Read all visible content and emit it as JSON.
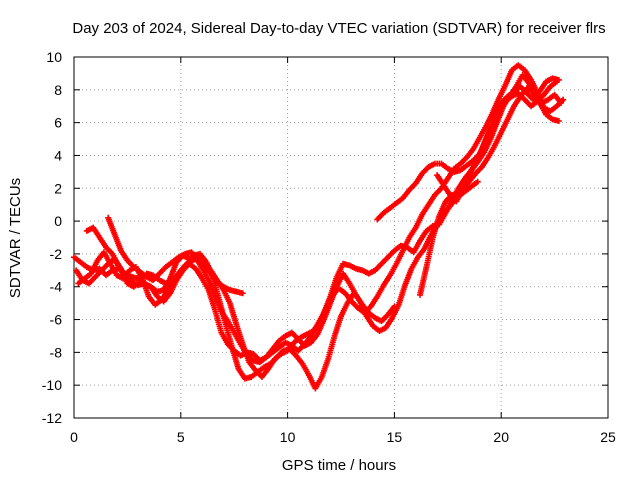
{
  "chart_data": {
    "type": "scatter",
    "title": "Day 203 of 2024, Sidereal Day-to-day VTEC variation (SDTVAR) for receiver flrs",
    "xlabel": "GPS time / hours",
    "ylabel": "SDTVAR / TECUs",
    "xlim": [
      0,
      25
    ],
    "ylim": [
      -12,
      10
    ],
    "xticks": [
      "0",
      "5",
      "10",
      "15",
      "20",
      "25"
    ],
    "yticks": [
      "10",
      "8",
      "6",
      "4",
      "2",
      "0",
      "-2",
      "-4",
      "-6",
      "-8",
      "-10",
      "-12"
    ],
    "grid": true,
    "marker": "plus",
    "color": "#ff0000",
    "series": [
      {
        "x": [
          0.0,
          0.3,
          0.6,
          0.9,
          1.2,
          1.5,
          1.8,
          2.1,
          2.4,
          2.7,
          3.0,
          3.3,
          3.6,
          3.9,
          4.2,
          4.5,
          4.8,
          5.1,
          5.4,
          5.7,
          6.0,
          6.3,
          6.6,
          6.9,
          7.2,
          7.5,
          7.8,
          8.1,
          8.4,
          8.7,
          9.0,
          9.3,
          9.6,
          9.9,
          10.2,
          10.5,
          10.8,
          11.1,
          11.4,
          11.7,
          12.0,
          12.3,
          12.6,
          12.9,
          13.2,
          13.5,
          13.8,
          14.1,
          14.4,
          14.7,
          15.0,
          15.3,
          15.6,
          15.9,
          16.2,
          16.5,
          16.8,
          17.1,
          17.4,
          17.7,
          18.0,
          18.3,
          18.6,
          18.9,
          19.2,
          19.5,
          19.8,
          20.1,
          20.4,
          20.7,
          21.0,
          21.3,
          21.6,
          21.9,
          22.2,
          22.5,
          22.8
        ],
        "y": [
          -2.2,
          -2.5,
          -2.8,
          -3.0,
          -2.9,
          -3.3,
          -3.0,
          -2.9,
          -3.2,
          -3.4,
          -3.5,
          -3.9,
          -4.0,
          -4.3,
          -4.2,
          -3.5,
          -2.5,
          -2.1,
          -2.3,
          -2.2,
          -2.9,
          -3.6,
          -4.5,
          -5.5,
          -6.1,
          -6.8,
          -7.5,
          -8.2,
          -8.5,
          -8.6,
          -8.3,
          -8.0,
          -7.7,
          -7.4,
          -7.6,
          -7.9,
          -7.5,
          -7.0,
          -6.3,
          -5.6,
          -4.6,
          -3.4,
          -2.6,
          -2.7,
          -2.9,
          -3.0,
          -3.2,
          -3.0,
          -2.6,
          -2.2,
          -1.8,
          -1.5,
          -1.6,
          -1.9,
          -1.2,
          -0.6,
          -0.3,
          -0.2,
          0.5,
          1.3,
          2.0,
          2.6,
          3.1,
          3.6,
          4.2,
          5.0,
          6.0,
          7.0,
          7.6,
          8.2,
          8.9,
          8.4,
          7.5,
          7.2,
          7.4,
          7.7,
          7.2
        ]
      },
      {
        "x": [
          0.1,
          0.4,
          0.7,
          1.0,
          1.3,
          1.6,
          1.9,
          2.2,
          2.5,
          2.8,
          3.1,
          3.4,
          3.7,
          4.0,
          4.3,
          4.6,
          4.9,
          5.2,
          5.5,
          5.8,
          6.1,
          6.4,
          6.7,
          7.0,
          7.3,
          7.6,
          7.9,
          8.2,
          8.5,
          8.8,
          9.1,
          9.4,
          9.7,
          10.0,
          10.3,
          10.6,
          10.9,
          11.2,
          11.5,
          11.8,
          12.1,
          12.4,
          12.7,
          13.0,
          13.3,
          13.6,
          13.9,
          14.2,
          14.5,
          14.8,
          15.1,
          15.4,
          15.7,
          16.0,
          16.3,
          16.6,
          16.9,
          17.2,
          17.5,
          17.8,
          18.1,
          18.4,
          18.7,
          19.0,
          19.3,
          19.6,
          19.9,
          20.2,
          20.5,
          20.8,
          21.1,
          21.4,
          21.7,
          22.0,
          22.3,
          22.6,
          22.9
        ],
        "y": [
          -3.0,
          -3.6,
          -3.8,
          -3.4,
          -3.0,
          -2.6,
          -2.3,
          -2.9,
          -3.8,
          -4.0,
          -3.7,
          -3.2,
          -3.3,
          -3.6,
          -3.8,
          -3.9,
          -3.3,
          -2.7,
          -2.4,
          -2.3,
          -2.5,
          -3.0,
          -3.6,
          -4.2,
          -5.0,
          -6.3,
          -7.5,
          -8.6,
          -9.1,
          -9.5,
          -9.0,
          -8.4,
          -8.1,
          -7.9,
          -7.4,
          -7.1,
          -6.9,
          -6.7,
          -6.2,
          -5.3,
          -4.5,
          -4.1,
          -4.4,
          -4.9,
          -5.3,
          -5.6,
          -5.2,
          -4.6,
          -3.9,
          -3.3,
          -2.6,
          -1.8,
          -1.0,
          -0.4,
          0.4,
          1.0,
          1.6,
          2.0,
          2.6,
          3.2,
          3.5,
          3.9,
          4.4,
          5.1,
          5.8,
          6.6,
          7.5,
          8.3,
          9.2,
          9.5,
          9.2,
          8.6,
          7.8,
          6.9,
          6.7,
          7.0,
          7.4
        ]
      },
      {
        "x": [
          0.2,
          0.5,
          0.8,
          1.1,
          1.4,
          1.7,
          2.0,
          2.3,
          2.6,
          2.9,
          3.2,
          3.5,
          3.8,
          4.1,
          4.4,
          4.7,
          5.0,
          5.3,
          5.6,
          5.9,
          6.2,
          6.5,
          6.8,
          7.1,
          7.4,
          7.7,
          8.0,
          8.3,
          8.6,
          8.9,
          9.2,
          9.5,
          9.8,
          10.1,
          10.4,
          10.7,
          11.0,
          11.3,
          11.6,
          11.9,
          12.2,
          12.5,
          12.8,
          13.1,
          13.4,
          13.7,
          14.0,
          14.3,
          14.6,
          14.9,
          15.2,
          15.5,
          15.8,
          16.1,
          16.4,
          16.7,
          17.0,
          17.3,
          17.6,
          17.9,
          18.2,
          18.5,
          18.8,
          19.1,
          19.4,
          19.7,
          20.0,
          20.3,
          20.6,
          20.9,
          21.2,
          21.5,
          21.8,
          22.1,
          22.4,
          22.7
        ],
        "y": [
          -3.8,
          -3.5,
          -3.2,
          -2.4,
          -1.9,
          -2.6,
          -3.3,
          -3.5,
          -3.0,
          -2.8,
          -3.5,
          -4.6,
          -5.1,
          -4.8,
          -4.2,
          -3.5,
          -3.0,
          -2.6,
          -2.1,
          -2.0,
          -2.5,
          -3.4,
          -4.8,
          -6.3,
          -7.7,
          -9.0,
          -9.6,
          -9.5,
          -9.2,
          -8.9,
          -8.7,
          -8.3,
          -7.9,
          -7.8,
          -8.2,
          -8.7,
          -9.4,
          -10.2,
          -9.5,
          -8.4,
          -7.0,
          -5.8,
          -5.0,
          -4.4,
          -4.9,
          -5.8,
          -6.4,
          -6.7,
          -6.5,
          -5.9,
          -5.1,
          -3.9,
          -2.9,
          -2.2,
          -1.7,
          -0.9,
          -0.2,
          0.4,
          0.9,
          1.4,
          1.9,
          2.4,
          2.9,
          3.3,
          3.9,
          4.6,
          5.4,
          6.2,
          7.0,
          7.6,
          8.1,
          7.9,
          7.2,
          6.5,
          6.2,
          6.1
        ]
      },
      {
        "x": [
          0.6,
          0.9,
          1.2,
          1.5,
          1.8,
          2.1,
          2.4,
          2.7,
          3.0,
          3.3,
          3.6,
          3.9,
          4.2,
          4.5,
          4.8,
          5.1,
          5.4,
          5.7,
          6.0,
          6.3,
          6.6,
          6.9,
          7.2,
          7.5,
          7.8,
          8.1,
          8.4,
          8.7,
          9.0,
          9.3,
          9.6,
          9.9,
          10.2,
          10.5,
          10.8,
          11.1,
          11.4,
          11.7,
          12.0,
          12.3,
          12.6,
          12.9,
          13.2,
          13.5,
          13.8,
          14.1,
          14.4,
          14.7,
          15.0
        ],
        "y": [
          -0.6,
          -0.4,
          -1.0,
          -1.6,
          -2.0,
          -2.8,
          -3.4,
          -3.7,
          -3.9,
          -3.8,
          -4.0,
          -4.6,
          -4.9,
          -4.4,
          -3.6,
          -3.0,
          -2.6,
          -2.9,
          -3.5,
          -4.2,
          -5.4,
          -6.8,
          -7.5,
          -7.9,
          -8.2,
          -8.0,
          -8.1,
          -8.5,
          -8.3,
          -7.8,
          -7.3,
          -7.0,
          -6.8,
          -7.2,
          -7.6,
          -7.4,
          -6.9,
          -6.0,
          -5.0,
          -4.0,
          -3.2,
          -3.8,
          -4.5,
          -5.1,
          -5.6,
          -5.9,
          -6.1,
          -5.7,
          -5.2
        ]
      },
      {
        "x": [
          1.6,
          1.9,
          2.2,
          2.5,
          2.8,
          3.1,
          3.4,
          3.7,
          4.0,
          4.3,
          4.6,
          4.9,
          5.2,
          5.5,
          5.8,
          6.1,
          6.4,
          6.7,
          7.0,
          7.3,
          7.6,
          7.9
        ],
        "y": [
          0.2,
          -0.8,
          -1.8,
          -2.4,
          -2.8,
          -3.1,
          -3.4,
          -3.6,
          -3.2,
          -2.8,
          -2.5,
          -2.2,
          -2.0,
          -1.9,
          -2.3,
          -2.8,
          -3.2,
          -3.7,
          -4.0,
          -4.2,
          -4.3,
          -4.4
        ]
      },
      {
        "x": [
          14.2,
          14.5,
          14.8,
          15.1,
          15.4,
          15.7,
          16.0,
          16.3,
          16.6,
          16.9,
          17.2,
          17.5,
          17.8,
          18.1,
          18.4,
          18.7,
          19.0,
          19.3,
          19.6,
          19.9,
          20.2,
          20.5,
          20.8,
          21.1,
          21.4,
          21.7,
          22.0,
          22.3,
          22.6
        ],
        "y": [
          0.1,
          0.5,
          0.8,
          1.1,
          1.4,
          1.9,
          2.3,
          2.9,
          3.3,
          3.5,
          3.5,
          3.2,
          3.0,
          3.1,
          3.4,
          3.7,
          4.1,
          5.0,
          5.9,
          6.7,
          7.3,
          7.6,
          7.8,
          7.4,
          7.0,
          7.3,
          7.7,
          8.2,
          8.5
        ]
      },
      {
        "x": [
          16.2,
          16.5,
          16.8,
          17.1,
          17.4,
          17.7,
          18.0,
          18.3,
          18.6,
          18.9
        ],
        "y": [
          -4.5,
          -2.8,
          -1.0,
          0.3,
          1.2,
          1.6,
          1.5,
          1.8,
          2.1,
          2.4
        ]
      },
      {
        "x": [
          17.0,
          17.3,
          17.6,
          17.9,
          18.2,
          18.5,
          18.8,
          19.1,
          19.4,
          19.7,
          20.0,
          20.3,
          20.6,
          20.9,
          21.2,
          21.5,
          21.8,
          22.1,
          22.4,
          22.7
        ],
        "y": [
          2.8,
          2.2,
          1.6,
          1.2,
          1.9,
          2.8,
          3.6,
          4.4,
          5.4,
          6.5,
          7.2,
          7.6,
          7.9,
          8.2,
          7.8,
          7.4,
          7.9,
          8.5,
          8.7,
          8.6
        ]
      }
    ]
  }
}
